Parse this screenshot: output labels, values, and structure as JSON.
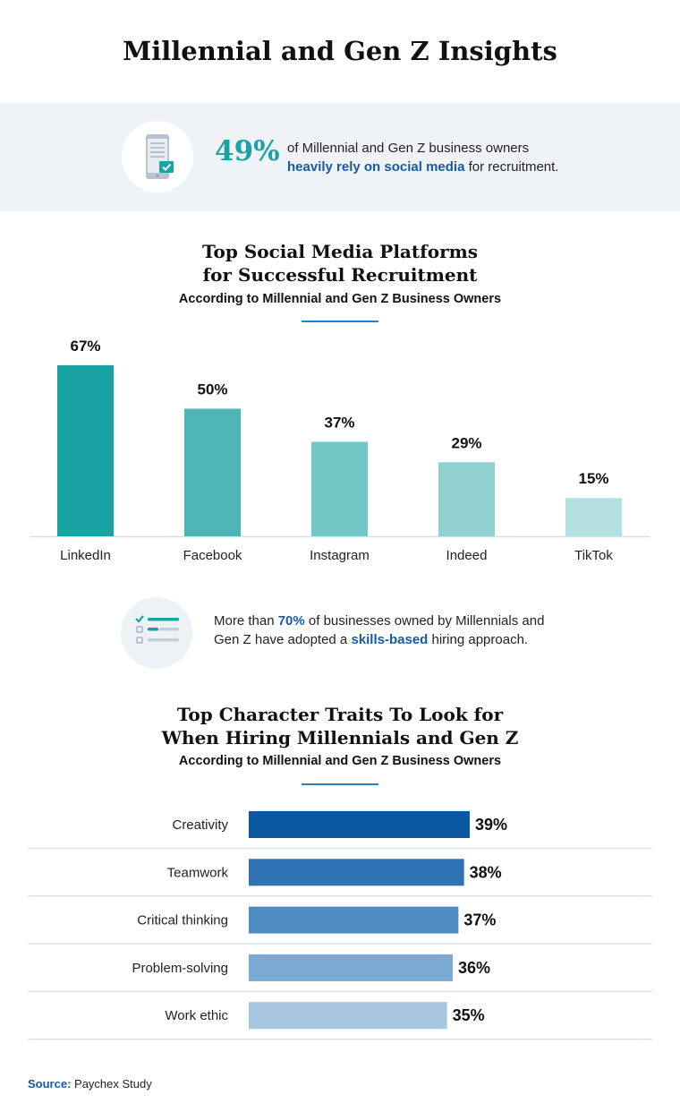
{
  "title": "Millennial and Gen Z Insights",
  "stat": {
    "percent": "49%",
    "line1": "of Millennial and Gen Z business owners",
    "highlight": "heavily rely on social media",
    "line2_rest": " for recruitment.",
    "icon": "phone-checkmark-icon"
  },
  "platforms": {
    "title_line1": "Top Social Media Platforms",
    "title_line2": "for Successful Recruitment",
    "subtitle": "According to Millennial and Gen Z Business Owners"
  },
  "skills": {
    "text_pre": "More than ",
    "highlight_pct": "70%",
    "text_mid": " of businesses owned by Millennials and",
    "text_line2_pre": "Gen Z have adopted a ",
    "highlight_word": "skills-based",
    "text_post": " hiring approach.",
    "icon": "checklist-icon"
  },
  "traits": {
    "title_line1": "Top Character Traits To Look for",
    "title_line2": "When Hiring Millennials and Gen Z",
    "subtitle": "According to Millennial and Gen Z Business Owners"
  },
  "source": {
    "label": "Source:",
    "text": " Paychex Study"
  },
  "chart_data": [
    {
      "type": "bar",
      "categories": [
        "LinkedIn",
        "Facebook",
        "Instagram",
        "Indeed",
        "TikTok"
      ],
      "values": [
        67,
        50,
        37,
        29,
        15
      ],
      "value_labels": [
        "67%",
        "50%",
        "37%",
        "29%",
        "15%"
      ],
      "colors": [
        "#1aa3a3",
        "#4db5b5",
        "#73c6c6",
        "#8fd1d1",
        "#b3e0e0"
      ],
      "ylim": [
        0,
        100
      ],
      "grid": false,
      "legend": "none"
    },
    {
      "type": "bar",
      "orientation": "horizontal",
      "categories": [
        "Creativity",
        "Teamwork",
        "Critical thinking",
        "Problem-solving",
        "Work ethic"
      ],
      "values": [
        39,
        38,
        37,
        36,
        35
      ],
      "value_labels": [
        "39%",
        "38%",
        "37%",
        "36%",
        "35%"
      ],
      "colors": [
        "#0b57a0",
        "#2e73b4",
        "#4f8cc4",
        "#7aa9d3",
        "#a7c6e2"
      ],
      "xlim": [
        0,
        39
      ],
      "grid": false,
      "legend": "none"
    }
  ]
}
